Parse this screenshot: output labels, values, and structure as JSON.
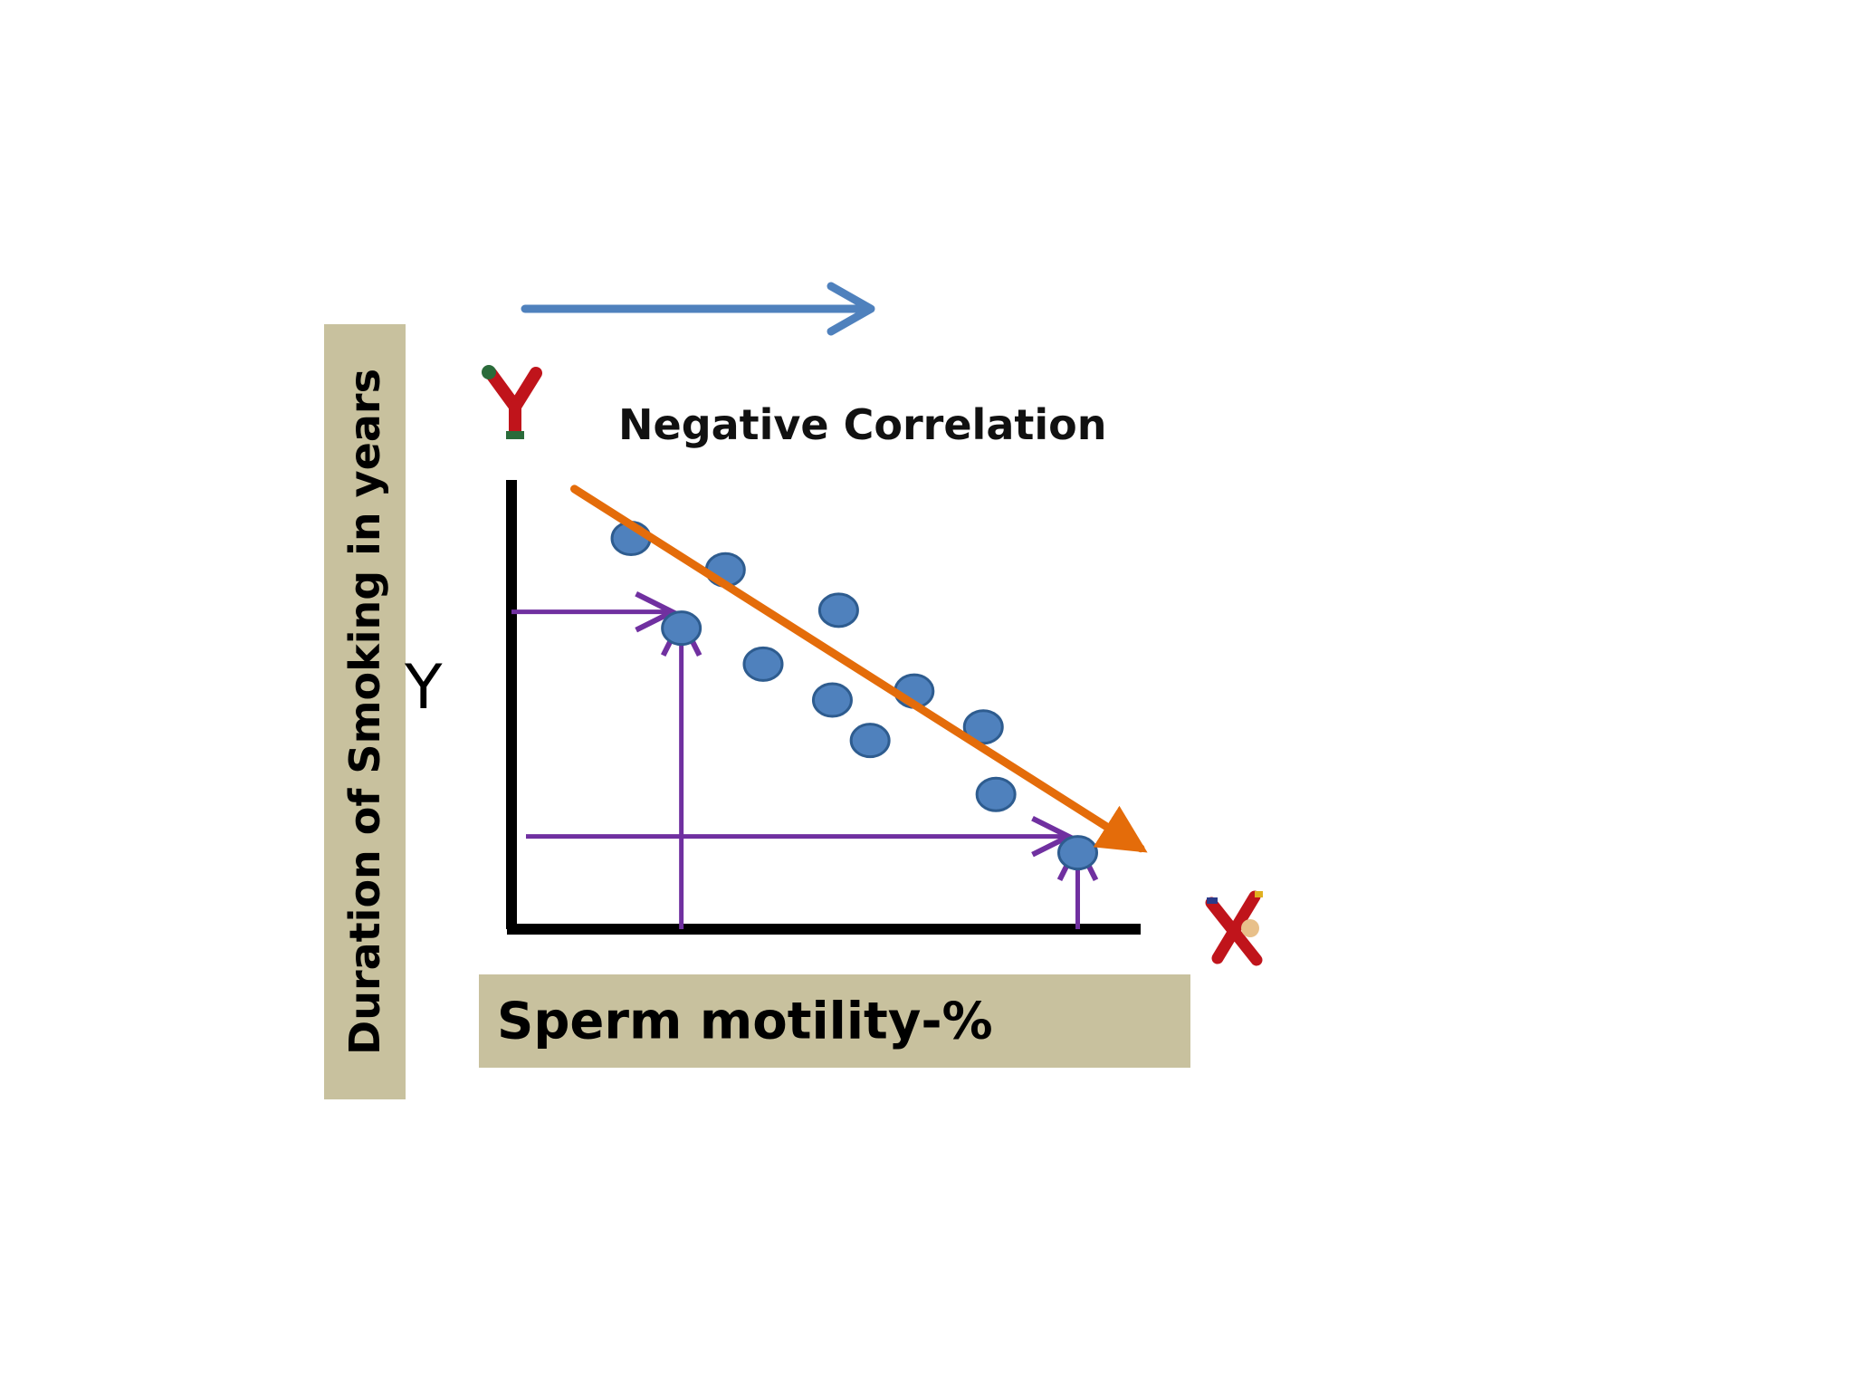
{
  "chart_data": {
    "type": "scatter",
    "title": "Negative Correlation",
    "xlabel": "Sperm motility-%",
    "ylabel": "Duration of Smoking in years",
    "y_axis_letter": "Y",
    "legend": "none",
    "grid": false,
    "xlim": [
      0,
      10
    ],
    "ylim": [
      0,
      10
    ],
    "points": [
      {
        "x": 1.9,
        "y": 8.7
      },
      {
        "x": 3.4,
        "y": 8.0
      },
      {
        "x": 5.2,
        "y": 7.1
      },
      {
        "x": 2.7,
        "y": 6.7
      },
      {
        "x": 4.0,
        "y": 5.9
      },
      {
        "x": 6.4,
        "y": 5.3
      },
      {
        "x": 5.1,
        "y": 5.1
      },
      {
        "x": 7.5,
        "y": 4.5
      },
      {
        "x": 5.7,
        "y": 4.2
      },
      {
        "x": 7.7,
        "y": 3.0
      },
      {
        "x": 9.0,
        "y": 1.7
      }
    ],
    "trend_line": {
      "from": {
        "x": 1.0,
        "y": 9.8
      },
      "to": {
        "x": 10.0,
        "y": 1.8
      }
    },
    "guides": [
      {
        "x": 2.7,
        "y": 6.7
      },
      {
        "x": 9.0,
        "y": 1.7
      }
    ]
  },
  "colors": {
    "point_fill": "#4f81bd",
    "point_stroke": "#2e5c8f",
    "trend": "#e46c0a",
    "guide": "#7030a0",
    "top_arrow": "#4f81bd",
    "label_bg": "#c8c19e",
    "axis": "#000000"
  },
  "decorations": [
    "y-figure-icon",
    "x-figure-icon",
    "top-direction-arrow"
  ]
}
